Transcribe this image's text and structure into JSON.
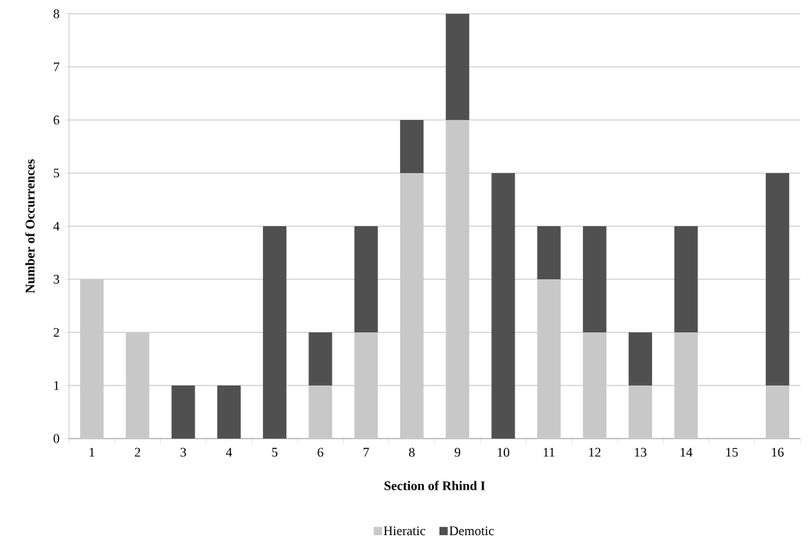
{
  "chart_data": {
    "type": "bar",
    "stacked": true,
    "xlabel": "Section of Rhind I",
    "ylabel": "Number of Occurrences",
    "categories": [
      "1",
      "2",
      "3",
      "4",
      "5",
      "6",
      "7",
      "8",
      "9",
      "10",
      "11",
      "12",
      "13",
      "14",
      "15",
      "16"
    ],
    "series": [
      {
        "name": "Hieratic",
        "color": "#c8c8c8",
        "values": [
          3,
          2,
          0,
          0,
          0,
          1,
          2,
          5,
          6,
          0,
          3,
          2,
          1,
          2,
          0,
          1
        ]
      },
      {
        "name": "Demotic",
        "color": "#505050",
        "values": [
          0,
          0,
          1,
          1,
          4,
          1,
          2,
          1,
          2,
          5,
          1,
          2,
          1,
          2,
          0,
          4
        ]
      }
    ],
    "ylim": [
      0,
      8
    ],
    "yticks": [
      0,
      1,
      2,
      3,
      4,
      5,
      6,
      7,
      8
    ],
    "grid": "y",
    "legend": "bottom"
  }
}
